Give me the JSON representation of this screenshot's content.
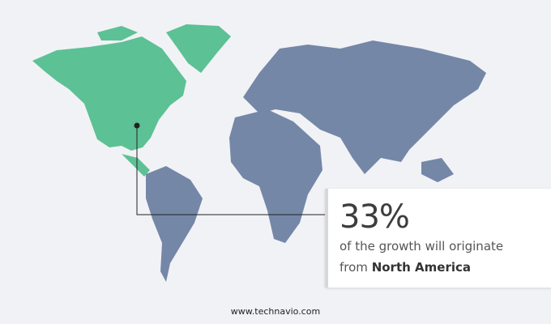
{
  "highlight": {
    "percent": "33%",
    "text": "of the growth will originate",
    "prefix": "from",
    "region": "North America"
  },
  "footer": "www.technavio.com",
  "colors": {
    "highlight_region": "#5cc194",
    "other_regions": "#7487a7",
    "background": "#f1f2f6"
  }
}
